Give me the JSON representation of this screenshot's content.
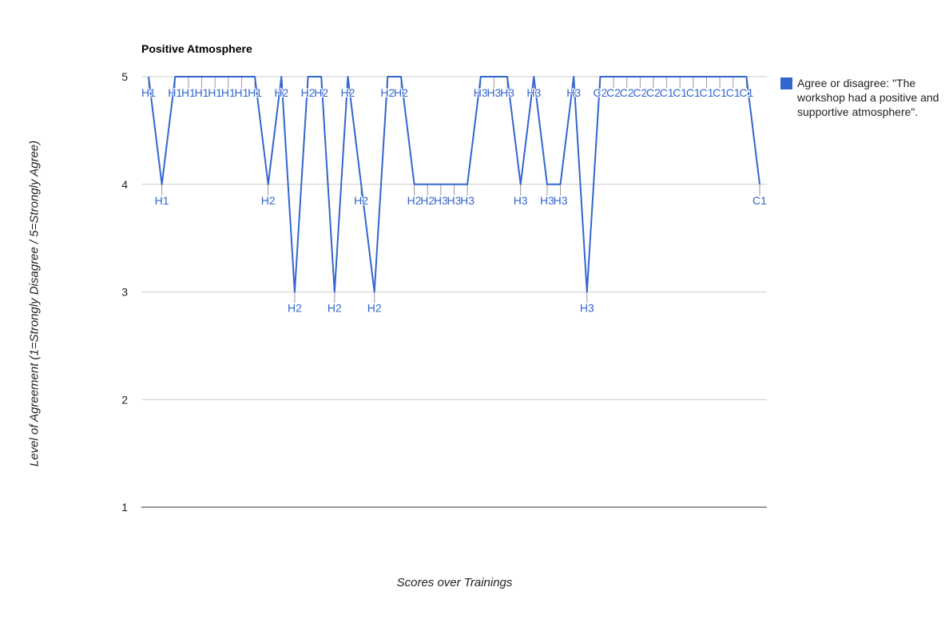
{
  "chart_data": {
    "type": "line",
    "title": "Positive Atmosphere",
    "xlabel": "Scores over Trainings",
    "ylabel": "Level of Agreement (1=Strongly Disagree / 5=Strongly Agree)",
    "ylim": [
      1,
      5
    ],
    "yticks": [
      "1",
      "2",
      "3",
      "4",
      "5"
    ],
    "grid": true,
    "legend_position": "right",
    "series": [
      {
        "name": "Agree or disagree: \"The workshop had a positive and supportive atmosphere\".",
        "color": "#3366cc",
        "labels": [
          "H1",
          "H1",
          "H1",
          "H1",
          "H1",
          "H1",
          "H1",
          "H1",
          "H1",
          "H2",
          "H2",
          "H2",
          "H2",
          "H2",
          "H2",
          "H2",
          "H2",
          "H2",
          "H2",
          "H2",
          "H2",
          "H2",
          "H3",
          "H3",
          "H3",
          "H3",
          "H3",
          "H3",
          "H3",
          "H3",
          "H3",
          "H3",
          "H3",
          "H3",
          "C2",
          "C2",
          "C2",
          "C2",
          "C2",
          "C1",
          "C1",
          "C1",
          "C1",
          "C1",
          "C1",
          "C1",
          "C1"
        ],
        "values": [
          5,
          4,
          5,
          5,
          5,
          5,
          5,
          5,
          5,
          4,
          5,
          3,
          5,
          5,
          3,
          5,
          4,
          3,
          5,
          5,
          4,
          4,
          4,
          4,
          4,
          5,
          5,
          5,
          4,
          5,
          4,
          4,
          5,
          3,
          5,
          5,
          5,
          5,
          5,
          5,
          5,
          5,
          5,
          5,
          5,
          5,
          4
        ]
      }
    ]
  }
}
